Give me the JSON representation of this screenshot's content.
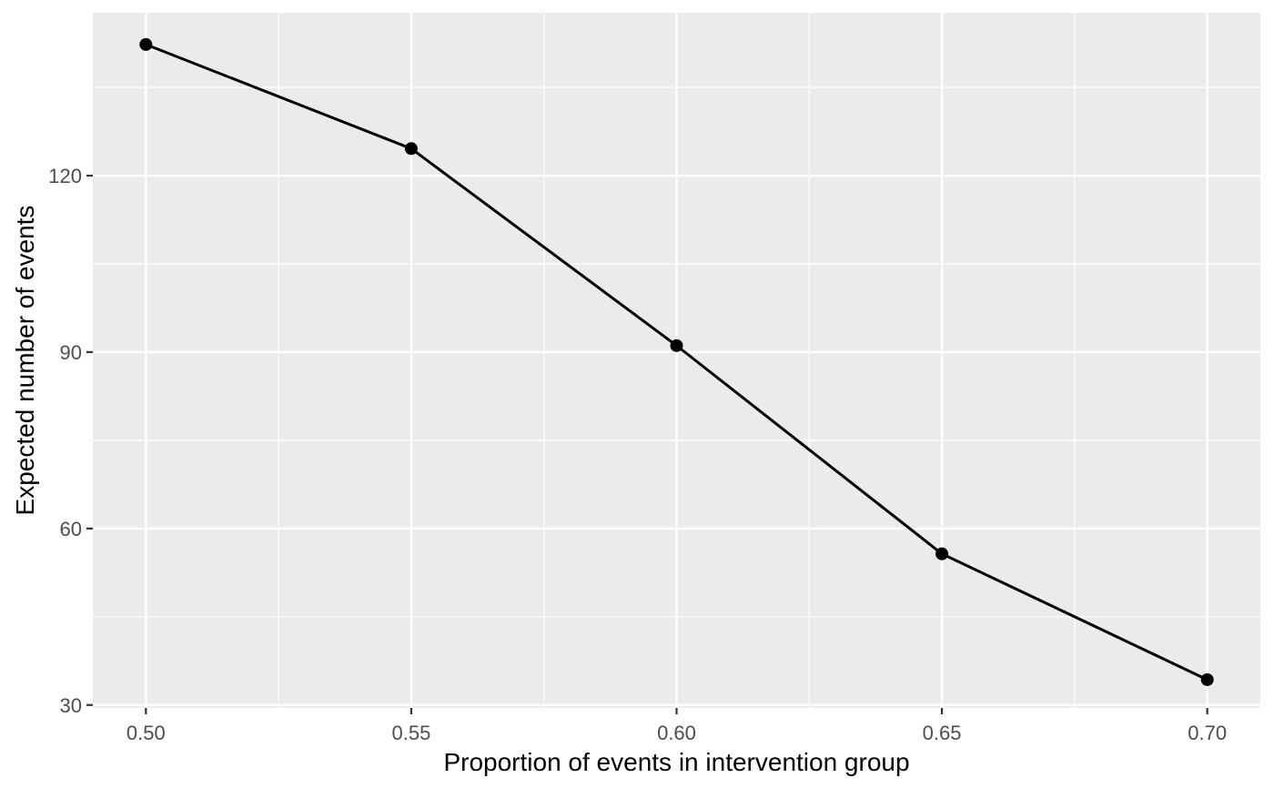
{
  "figure": {
    "background_color": "#FFFFFF",
    "panel_background_color": "#EBEBEB",
    "grid_color": "#FFFFFF",
    "line_color": "#000000",
    "point_color": "#000000",
    "tick_mark_color": "#333333",
    "axis_text_color": "#4D4D4D",
    "axis_title_color": "#000000"
  },
  "chart_data": {
    "type": "line",
    "title": "",
    "xlabel": "Proportion of events in intervention group",
    "ylabel": "Expected number of events",
    "x": [
      0.5,
      0.55,
      0.6,
      0.65,
      0.7
    ],
    "y": [
      142.3,
      124.6,
      91.1,
      55.7,
      34.3
    ],
    "x_ticks": [
      0.5,
      0.55,
      0.6,
      0.65,
      0.7
    ],
    "x_tick_labels": [
      "0.50",
      "0.55",
      "0.60",
      "0.65",
      "0.70"
    ],
    "y_ticks": [
      30,
      60,
      90,
      120
    ],
    "y_tick_labels": [
      "30",
      "60",
      "90",
      "120"
    ],
    "x_minor_ticks": [
      0.525,
      0.575,
      0.625,
      0.675
    ],
    "y_minor_ticks": [
      45,
      75,
      105,
      135
    ],
    "xlim": [
      0.49,
      0.71
    ],
    "ylim": [
      29.5,
      147.7
    ],
    "grid": true,
    "legend": false,
    "marker": "filled-circle"
  }
}
